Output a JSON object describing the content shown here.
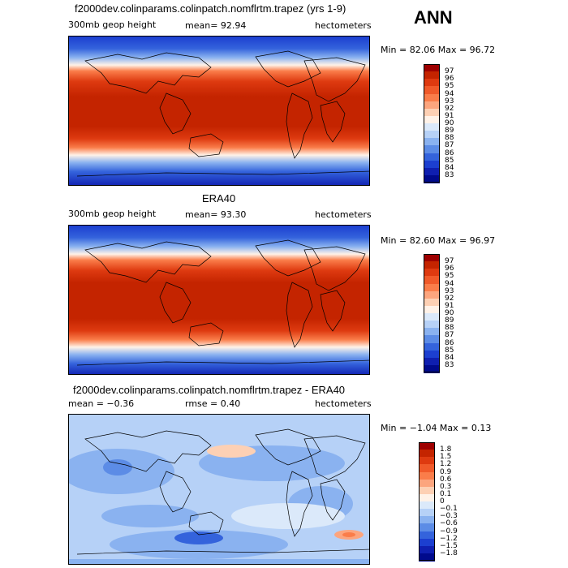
{
  "season": "ANN",
  "panels": [
    {
      "title": "f2000dev.colinparams.colinpatch.nomflrtm.trapez (yrs 1-9)",
      "left_label": "300mb geop height",
      "center_label": "mean=  92.94",
      "units": "hectometers",
      "minmax": "Min =  82.06 Max =  96.72",
      "colorbar_labels": [
        "97",
        "96",
        "95",
        "94",
        "93",
        "92",
        "91",
        "90",
        "89",
        "88",
        "87",
        "86",
        "85",
        "84",
        "83"
      ]
    },
    {
      "title": "ERA40",
      "left_label": "300mb geop height",
      "center_label": "mean=  93.30",
      "units": "hectometers",
      "minmax": "Min =  82.60 Max =  96.97",
      "colorbar_labels": [
        "97",
        "96",
        "95",
        "94",
        "93",
        "92",
        "91",
        "90",
        "89",
        "88",
        "87",
        "86",
        "85",
        "84",
        "83"
      ]
    },
    {
      "title": "f2000dev.colinparams.colinpatch.nomflrtm.trapez - ERA40",
      "left_label": "mean =  −0.36",
      "center_label": "rmse =   0.40",
      "units": "hectometers",
      "minmax": "Min =  −1.04 Max =   0.13",
      "colorbar_labels": [
        "1.8",
        "1.5",
        "1.2",
        "0.9",
        "0.6",
        "0.3",
        "0.1",
        "0",
        "−0.1",
        "−0.3",
        "−0.6",
        "−0.9",
        "−1.2",
        "−1.5",
        "−1.8"
      ]
    }
  ],
  "colors": {
    "abs_scale": [
      "#9e0000",
      "#c42400",
      "#de3a10",
      "#f05a2a",
      "#fa7d4a",
      "#fca57e",
      "#fdd0b4",
      "#fff2e8",
      "#dbe9fa",
      "#b6d1f7",
      "#8ab2f0",
      "#5c8ce6",
      "#3463dc",
      "#1c3fd0",
      "#0f1fb0",
      "#000a8c"
    ],
    "diff_scale": [
      "#9e0000",
      "#c42400",
      "#de3a10",
      "#f05a2a",
      "#fa7d4a",
      "#fca57e",
      "#fdd0b4",
      "#fff2e8",
      "#dbe9fa",
      "#b6d1f7",
      "#8ab2f0",
      "#5c8ce6",
      "#3463dc",
      "#1c3fd0",
      "#0f1fb0",
      "#000a8c"
    ]
  }
}
